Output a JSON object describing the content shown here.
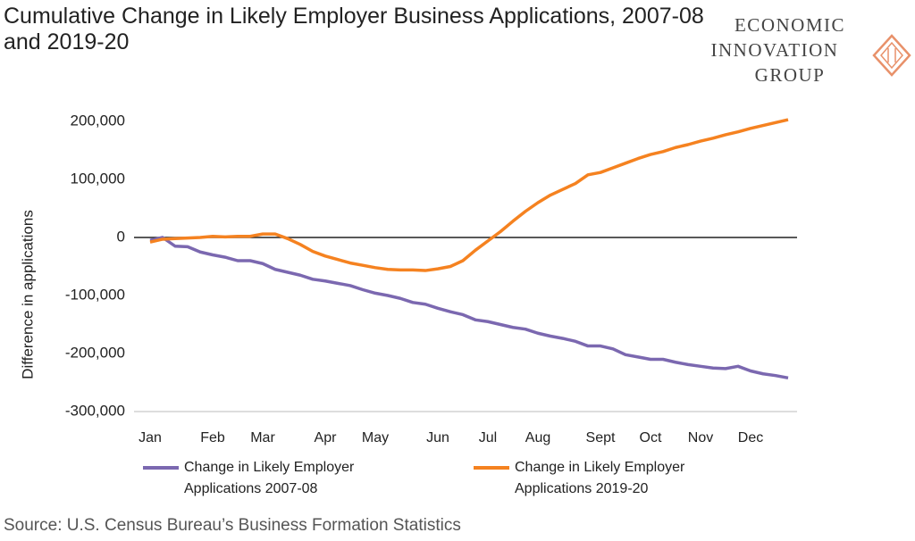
{
  "chart_data": {
    "type": "line",
    "title": "Cumulative Change in Likely Employer Business Applications, 2007-08 and 2019-20",
    "y_label": "Difference in applications",
    "source": "Source: U.S. Census Bureau’s Business Formation Statistics",
    "logo": [
      "ECONOMIC",
      "INNOVATION",
      "GROUP"
    ],
    "categories": [
      "Jan",
      null,
      null,
      null,
      null,
      "Feb",
      null,
      null,
      null,
      "Mar",
      null,
      null,
      null,
      null,
      "Apr",
      null,
      null,
      null,
      "May",
      null,
      null,
      null,
      null,
      "Jun",
      null,
      null,
      null,
      "Jul",
      null,
      null,
      null,
      "Aug",
      null,
      null,
      null,
      null,
      "Sept",
      null,
      null,
      null,
      "Oct",
      null,
      null,
      null,
      "Nov",
      null,
      null,
      null,
      "Dec",
      null,
      null,
      null
    ],
    "series": [
      {
        "name": "Change in Likely Employer Applications 2007-08",
        "color": "#7b68b0",
        "values": [
          -5000,
          0,
          -15000,
          -16000,
          -25000,
          -30000,
          -34000,
          -40000,
          -40000,
          -45000,
          -55000,
          -60000,
          -65000,
          -72000,
          -75000,
          -79000,
          -83000,
          -90000,
          -96000,
          -100000,
          -105000,
          -112000,
          -115000,
          -122000,
          -128000,
          -133000,
          -142000,
          -145000,
          -150000,
          -155000,
          -158000,
          -165000,
          -170000,
          -174000,
          -179000,
          -187000,
          -187000,
          -192000,
          -202000,
          -206000,
          -210000,
          -210000,
          -215000,
          -219000,
          -222000,
          -225000,
          -226000,
          -222000,
          -230000,
          -235000,
          -238000,
          -242000
        ]
      },
      {
        "name": "Change in Likely Employer Applications 2019-20",
        "color": "#f58220",
        "values": [
          -8000,
          -3000,
          -2000,
          -1000,
          0,
          2000,
          1000,
          2000,
          2000,
          6000,
          6000,
          -2000,
          -12000,
          -24000,
          -32000,
          -38000,
          -44000,
          -48000,
          -52000,
          -55000,
          -56000,
          -56000,
          -57000,
          -54000,
          -50000,
          -40000,
          -22000,
          -6000,
          10000,
          28000,
          45000,
          60000,
          73000,
          83000,
          93000,
          108000,
          112000,
          120000,
          128000,
          136000,
          143000,
          148000,
          155000,
          160000,
          166000,
          171000,
          177000,
          182000,
          188000,
          193000,
          198000,
          203000
        ]
      }
    ],
    "ylim": [
      -300000,
      200000
    ],
    "yticks": [
      {
        "value": -300000,
        "label": "-300,000"
      },
      {
        "value": -200000,
        "label": "-200,000"
      },
      {
        "value": -100000,
        "label": "-100,000"
      },
      0,
      {
        "value": 100000,
        "label": "100,000"
      },
      {
        "value": 200000,
        "label": "200,000"
      }
    ],
    "grid": false,
    "zero_line": true,
    "legend": "bottom"
  }
}
